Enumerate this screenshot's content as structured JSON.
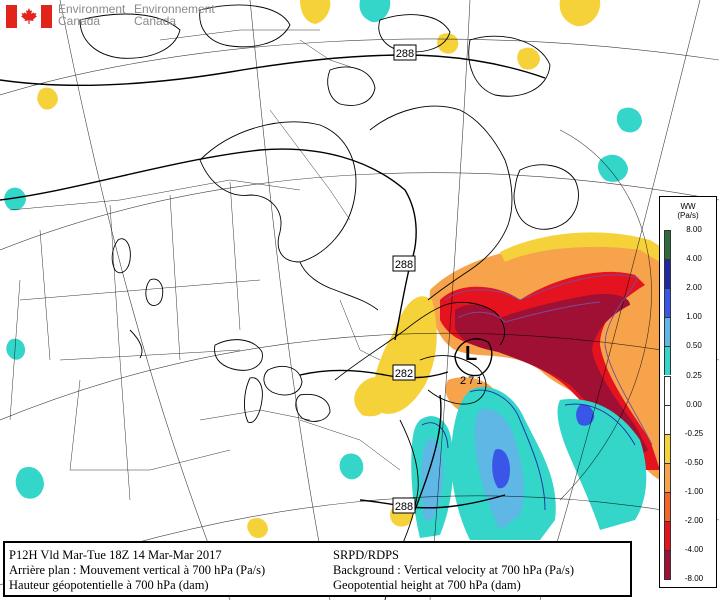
{
  "branding": {
    "agency_en_line1": "Environment",
    "agency_en_line2": "Canada",
    "agency_fr_line1": "Environnement",
    "agency_fr_line2": "Canada"
  },
  "map": {
    "height_labels": [
      "288",
      "288",
      "282",
      "288"
    ],
    "low_center_symbol": "L",
    "low_center_value": "271",
    "colors": {
      "dark_green": "#2e6b3f",
      "dark_blue": "#1f2aa0",
      "blue": "#3a56e8",
      "light_blue": "#5fb7e6",
      "cyan": "#33d6c8",
      "yellow": "#f6d23a",
      "orange": "#f7a34b",
      "red_orange": "#f3652b",
      "red": "#e4131f",
      "dark_red": "#a01034",
      "purple_contour": "#7a4d9a",
      "coastline": "#000000",
      "grid": "#000000"
    }
  },
  "legend": {
    "title_line1": "WW",
    "title_line2": "(Pa/s)",
    "levels": [
      "8.00",
      "4.00",
      "2.00",
      "1.00",
      "0.50",
      "0.25",
      "0.00",
      "-0.25",
      "-0.50",
      "-1.00",
      "-2.00",
      "-4.00",
      "-8.00"
    ],
    "bin_colors": [
      "#2e6b3f",
      "#1f2aa0",
      "#3a56e8",
      "#5fb7e6",
      "#33d6c8",
      "#ffffff",
      "#ffffff",
      "#f6d23a",
      "#f7a34b",
      "#f3652b",
      "#e4131f",
      "#a01034"
    ]
  },
  "caption": {
    "line1_left": "P12H Vld Mar-Tue 18Z 14 Mar-Mar 2017",
    "line2_left": "Arrière plan : Mouvement vertical à 700 hPa (Pa/s)",
    "line3_left": "Hauteur géopotentielle à 700 hPa (dam)",
    "line1_right": "SRPD/RDPS",
    "line2_right": "Background : Vertical velocity at 700 hPa (Pa/s)",
    "line3_right": "Geopotential height at 700 hPa (dam)"
  }
}
